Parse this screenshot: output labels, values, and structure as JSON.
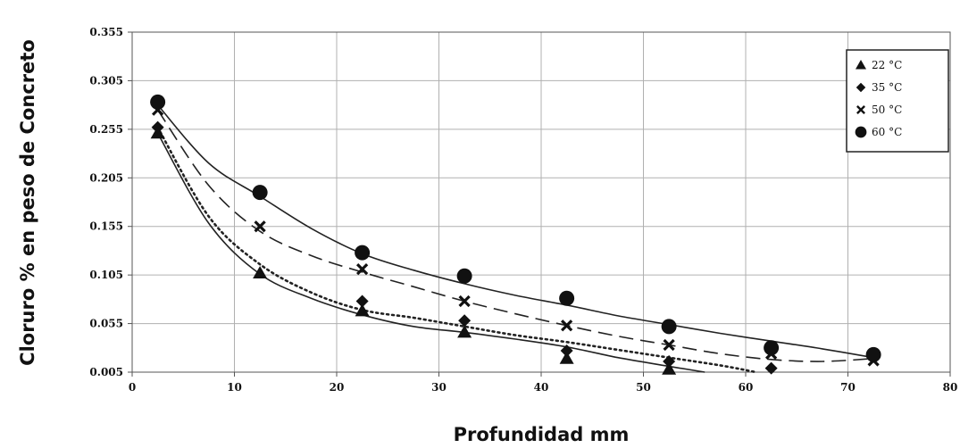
{
  "chart_data": {
    "type": "scatter",
    "title": "",
    "xlabel": "Profundidad mm",
    "ylabel": "Cloruro % en peso de Concreto",
    "xlim": [
      0,
      80
    ],
    "ylim": [
      0.005,
      0.355
    ],
    "xticks": [
      0,
      10,
      20,
      30,
      40,
      50,
      60,
      70,
      80
    ],
    "yticks": [
      "0.005",
      "0.055",
      "0.105",
      "0.155",
      "0.205",
      "0.255",
      "0.305",
      "0.355"
    ],
    "grid": true,
    "legend_position": "top-right",
    "series": [
      {
        "name": "22 °C",
        "marker": "triangle",
        "line": "solid",
        "x": [
          2.5,
          12.5,
          22.5,
          32.5,
          42.5,
          52.5
        ],
        "y": [
          0.251,
          0.107,
          0.068,
          0.046,
          0.019,
          0.008
        ],
        "curve_x": [
          2.5,
          7.5,
          12.5,
          17.5,
          22.5,
          27.5,
          32.5,
          37.5,
          42.5,
          47.5,
          52.5,
          56
        ],
        "curve_y": [
          0.251,
          0.158,
          0.106,
          0.081,
          0.064,
          0.052,
          0.046,
          0.039,
          0.031,
          0.02,
          0.011,
          0.005
        ]
      },
      {
        "name": "35 °C",
        "marker": "diamond",
        "line": "dotted",
        "x": [
          2.5,
          22.5,
          32.5,
          42.5,
          52.5,
          62.5
        ],
        "y": [
          0.257,
          0.078,
          0.058,
          0.027,
          0.016,
          0.009
        ],
        "curve_x": [
          2.5,
          7.5,
          12.5,
          17.5,
          22.5,
          27.5,
          32.5,
          37.5,
          42.5,
          47.5,
          52.5,
          57.5,
          61
        ],
        "curve_y": [
          0.257,
          0.165,
          0.116,
          0.087,
          0.069,
          0.061,
          0.052,
          0.043,
          0.036,
          0.028,
          0.02,
          0.012,
          0.005
        ]
      },
      {
        "name": "50 °C",
        "marker": "x",
        "line": "dashed",
        "x": [
          2.5,
          12.5,
          22.5,
          32.5,
          42.5,
          52.5,
          62.5,
          72.5
        ],
        "y": [
          0.275,
          0.155,
          0.111,
          0.078,
          0.053,
          0.033,
          0.024,
          0.017
        ],
        "curve_x": [
          2.5,
          7.5,
          12.5,
          17.5,
          22.5,
          27.5,
          32.5,
          37.5,
          42.5,
          47.5,
          52.5,
          57.5,
          62.5,
          67.5,
          72.5
        ],
        "curve_y": [
          0.275,
          0.197,
          0.15,
          0.125,
          0.108,
          0.093,
          0.078,
          0.065,
          0.053,
          0.042,
          0.033,
          0.024,
          0.018,
          0.016,
          0.019
        ]
      },
      {
        "name": "60 °C",
        "marker": "circle",
        "line": "solid",
        "x": [
          2.5,
          12.5,
          22.5,
          32.5,
          42.5,
          52.5,
          62.5,
          72.5
        ],
        "y": [
          0.283,
          0.19,
          0.128,
          0.104,
          0.081,
          0.052,
          0.03,
          0.023
        ],
        "curve_x": [
          2.5,
          7.5,
          12.5,
          17.5,
          22.5,
          27.5,
          32.5,
          37.5,
          42.5,
          47.5,
          52.5,
          57.5,
          62.5,
          67.5,
          72.5
        ],
        "curve_y": [
          0.28,
          0.22,
          0.186,
          0.153,
          0.127,
          0.11,
          0.096,
          0.084,
          0.074,
          0.063,
          0.054,
          0.045,
          0.037,
          0.029,
          0.02
        ]
      }
    ]
  },
  "colors": {
    "marker": "#111111",
    "line": "#222222",
    "grid": "#b0b0b0",
    "frame": "#555555"
  }
}
